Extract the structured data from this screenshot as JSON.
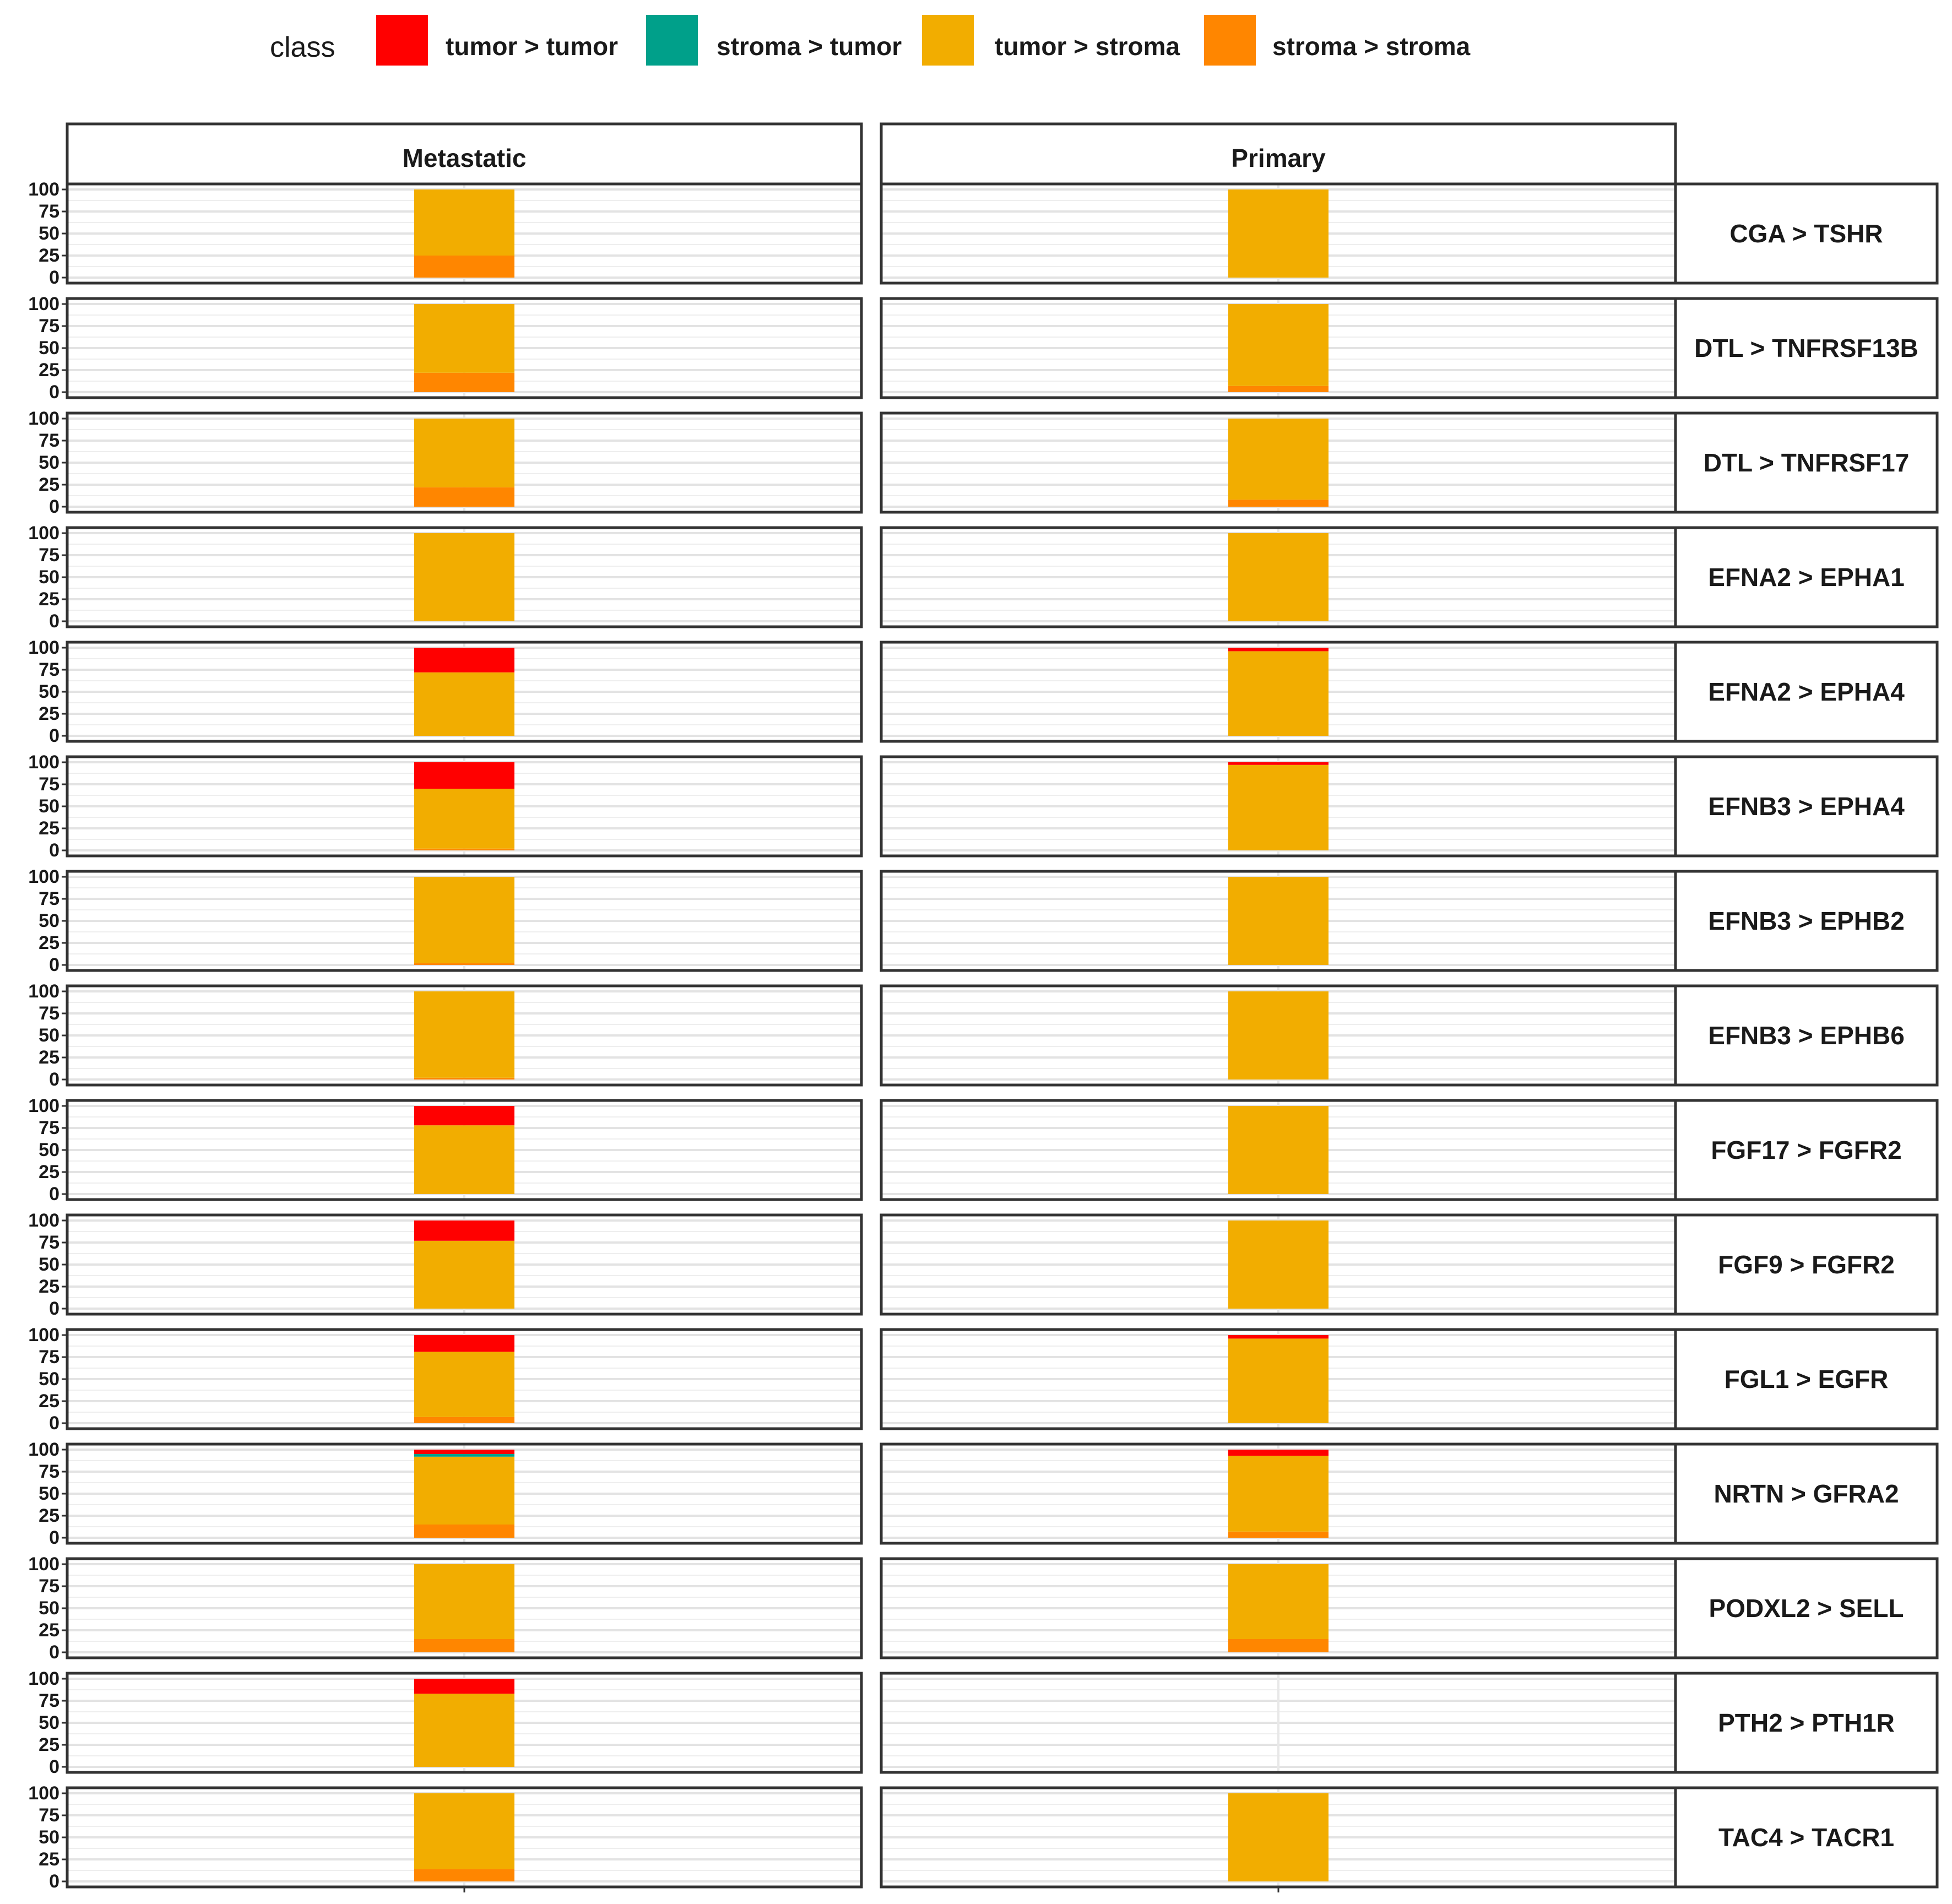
{
  "chart_data": {
    "type": "bar",
    "stacked": true,
    "legend": {
      "title": "class",
      "position": "top",
      "entries": [
        {
          "name": "tumor > tumor",
          "color": "#ff0000"
        },
        {
          "name": "stroma > tumor",
          "color": "#00a08a"
        },
        {
          "name": "tumor > stroma",
          "color": "#f2ad00"
        },
        {
          "name": "stroma > stroma",
          "color": "#ff8600"
        }
      ]
    },
    "columns": [
      "Metastatic",
      "Primary"
    ],
    "y_ticks": [
      "0",
      "25",
      "50",
      "75",
      "100"
    ],
    "ylim": [
      0,
      100
    ],
    "grid": true,
    "rows": [
      {
        "label": "CGA > TSHR",
        "values": [
          {
            "tumor_tumor": 0,
            "stroma_tumor": 0,
            "tumor_stroma": 75,
            "stroma_stroma": 25
          },
          {
            "tumor_tumor": 0,
            "stroma_tumor": 0,
            "tumor_stroma": 100,
            "stroma_stroma": 0
          }
        ]
      },
      {
        "label": "DTL > TNFRSF13B",
        "values": [
          {
            "tumor_tumor": 0,
            "stroma_tumor": 0,
            "tumor_stroma": 78,
            "stroma_stroma": 22
          },
          {
            "tumor_tumor": 0,
            "stroma_tumor": 0,
            "tumor_stroma": 93,
            "stroma_stroma": 7
          }
        ]
      },
      {
        "label": "DTL > TNFRSF17",
        "values": [
          {
            "tumor_tumor": 0,
            "stroma_tumor": 0,
            "tumor_stroma": 78,
            "stroma_stroma": 22
          },
          {
            "tumor_tumor": 0,
            "stroma_tumor": 0,
            "tumor_stroma": 92,
            "stroma_stroma": 8
          }
        ]
      },
      {
        "label": "EFNA2 > EPHA1",
        "values": [
          {
            "tumor_tumor": 0,
            "stroma_tumor": 0,
            "tumor_stroma": 100,
            "stroma_stroma": 0
          },
          {
            "tumor_tumor": 0,
            "stroma_tumor": 0,
            "tumor_stroma": 100,
            "stroma_stroma": 0
          }
        ]
      },
      {
        "label": "EFNA2 > EPHA4",
        "values": [
          {
            "tumor_tumor": 28,
            "stroma_tumor": 0,
            "tumor_stroma": 72,
            "stroma_stroma": 0
          },
          {
            "tumor_tumor": 4,
            "stroma_tumor": 0,
            "tumor_stroma": 96,
            "stroma_stroma": 0
          }
        ]
      },
      {
        "label": "EFNB3 > EPHA4",
        "values": [
          {
            "tumor_tumor": 30,
            "stroma_tumor": 0,
            "tumor_stroma": 68,
            "stroma_stroma": 2
          },
          {
            "tumor_tumor": 3,
            "stroma_tumor": 0,
            "tumor_stroma": 97,
            "stroma_stroma": 0
          }
        ]
      },
      {
        "label": "EFNB3 > EPHB2",
        "values": [
          {
            "tumor_tumor": 0,
            "stroma_tumor": 0,
            "tumor_stroma": 98,
            "stroma_stroma": 2
          },
          {
            "tumor_tumor": 0,
            "stroma_tumor": 0,
            "tumor_stroma": 100,
            "stroma_stroma": 0
          }
        ]
      },
      {
        "label": "EFNB3 > EPHB6",
        "values": [
          {
            "tumor_tumor": 0,
            "stroma_tumor": 0,
            "tumor_stroma": 98,
            "stroma_stroma": 2
          },
          {
            "tumor_tumor": 0,
            "stroma_tumor": 0,
            "tumor_stroma": 100,
            "stroma_stroma": 0
          }
        ]
      },
      {
        "label": "FGF17 > FGFR2",
        "values": [
          {
            "tumor_tumor": 22,
            "stroma_tumor": 0,
            "tumor_stroma": 78,
            "stroma_stroma": 0
          },
          {
            "tumor_tumor": 0,
            "stroma_tumor": 0,
            "tumor_stroma": 100,
            "stroma_stroma": 0
          }
        ]
      },
      {
        "label": "FGF9 > FGFR2",
        "values": [
          {
            "tumor_tumor": 23,
            "stroma_tumor": 0,
            "tumor_stroma": 77,
            "stroma_stroma": 0
          },
          {
            "tumor_tumor": 0,
            "stroma_tumor": 0,
            "tumor_stroma": 100,
            "stroma_stroma": 0
          }
        ]
      },
      {
        "label": "FGL1 > EGFR",
        "values": [
          {
            "tumor_tumor": 19,
            "stroma_tumor": 0,
            "tumor_stroma": 74,
            "stroma_stroma": 7
          },
          {
            "tumor_tumor": 4,
            "stroma_tumor": 0,
            "tumor_stroma": 96,
            "stroma_stroma": 0
          }
        ]
      },
      {
        "label": "NRTN > GFRA2",
        "values": [
          {
            "tumor_tumor": 5,
            "stroma_tumor": 3,
            "tumor_stroma": 77,
            "stroma_stroma": 15
          },
          {
            "tumor_tumor": 7,
            "stroma_tumor": 0,
            "tumor_stroma": 86,
            "stroma_stroma": 7
          }
        ]
      },
      {
        "label": "PODXL2 > SELL",
        "values": [
          {
            "tumor_tumor": 0,
            "stroma_tumor": 0,
            "tumor_stroma": 85,
            "stroma_stroma": 15
          },
          {
            "tumor_tumor": 0,
            "stroma_tumor": 0,
            "tumor_stroma": 85,
            "stroma_stroma": 15
          }
        ]
      },
      {
        "label": "PTH2 > PTH1R",
        "values": [
          {
            "tumor_tumor": 17,
            "stroma_tumor": 0,
            "tumor_stroma": 83,
            "stroma_stroma": 0
          },
          null
        ]
      },
      {
        "label": "TAC4 > TACR1",
        "values": [
          {
            "tumor_tumor": 0,
            "stroma_tumor": 0,
            "tumor_stroma": 86,
            "stroma_stroma": 14
          },
          {
            "tumor_tumor": 0,
            "stroma_tumor": 0,
            "tumor_stroma": 100,
            "stroma_stroma": 0
          }
        ]
      }
    ]
  }
}
